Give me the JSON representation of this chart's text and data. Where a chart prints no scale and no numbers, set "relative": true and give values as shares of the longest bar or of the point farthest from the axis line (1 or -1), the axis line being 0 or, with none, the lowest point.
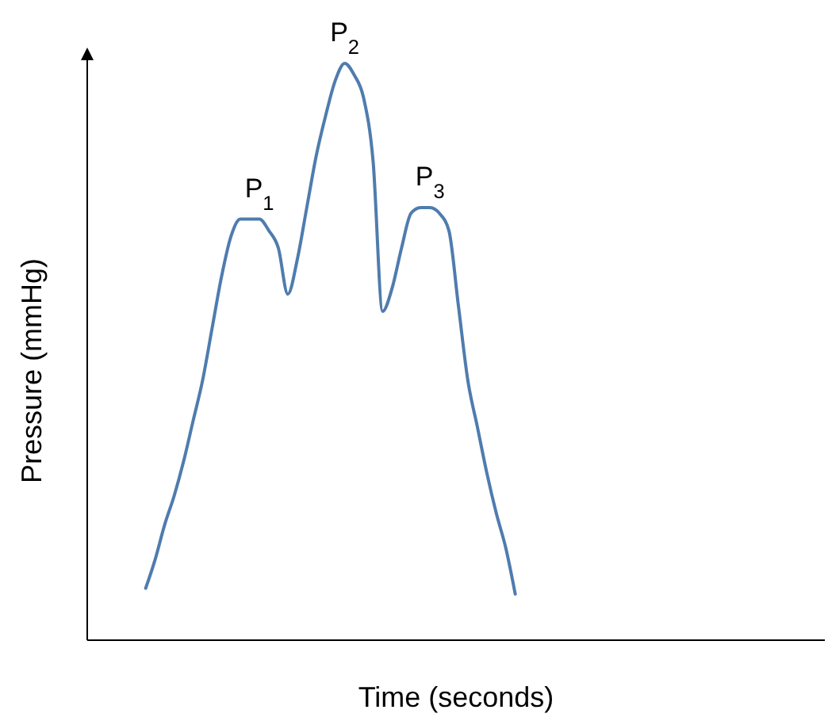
{
  "chart_data": {
    "type": "line",
    "relative": true,
    "xlabel": "Time (seconds)",
    "ylabel": "Pressure (mmHg)",
    "categories": [
      null,
      null,
      null,
      null,
      null,
      null,
      null,
      null,
      null,
      null,
      null,
      null,
      null,
      null,
      null,
      null,
      null,
      null,
      null,
      null,
      null,
      null,
      null,
      null,
      null,
      null,
      null,
      null,
      null,
      null,
      null,
      null,
      null,
      null,
      null,
      null,
      null,
      null,
      null,
      null,
      null,
      null,
      null,
      null,
      null,
      null,
      null,
      null,
      null,
      null,
      null,
      null,
      null,
      null,
      null,
      null,
      null,
      null,
      null,
      null,
      null,
      null,
      null,
      null,
      null,
      null,
      null,
      null,
      null,
      null,
      null,
      null,
      null,
      null,
      null,
      null,
      null,
      null
    ],
    "series": [
      {
        "color": "#4f7cae",
        "values": [
          null,
          null,
          null,
          null,
          null,
          null,
          0.09,
          0.14,
          0.2,
          0.25,
          0.31,
          0.38,
          0.45,
          0.54,
          0.63,
          0.7,
          0.73,
          0.73,
          0.73,
          0.71,
          0.68,
          0.6,
          0.66,
          0.75,
          0.84,
          0.91,
          0.97,
          1.0,
          0.98,
          0.94,
          0.83,
          0.57,
          0.61,
          0.68,
          0.74,
          0.75,
          0.75,
          0.74,
          0.71,
          0.58,
          0.45,
          0.37,
          0.29,
          0.22,
          0.16,
          0.08,
          null,
          null,
          null,
          null,
          null,
          null,
          null,
          null,
          null,
          null,
          null,
          null,
          null,
          null,
          null,
          null,
          null,
          null,
          null,
          null,
          null,
          null,
          null,
          null,
          null,
          null,
          null,
          null,
          null,
          null,
          null,
          null
        ]
      }
    ],
    "annotations": [
      {
        "text": "P$_{1}$",
        "y": 0.73
      },
      {
        "text": "P$_{2}$",
        "y": 1.0
      },
      {
        "text": "P$_{3}$",
        "y": 0.75
      }
    ],
    "marker": "none",
    "line_style": "solid"
  }
}
